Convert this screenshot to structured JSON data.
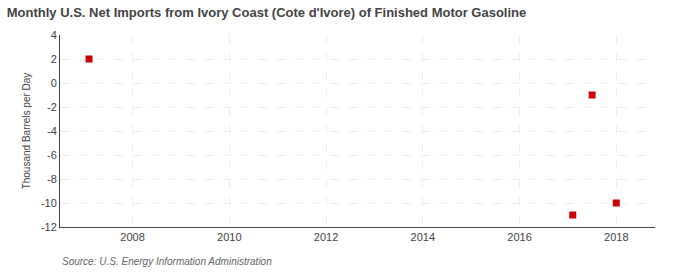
{
  "chart_data": {
    "type": "scatter",
    "title": "Monthly U.S. Net Imports from Ivory Coast (Cote d'Ivore) of Finished Motor Gasoline",
    "ylabel": "Thousand Barrels per Day",
    "annotations": [
      "Source: U.S. Energy Information Administration"
    ],
    "x": [
      2007.1,
      2017.5,
      2017.1,
      2018.0
    ],
    "values": [
      2,
      -1,
      -11,
      -10
    ],
    "color": "#cc0000",
    "marker": "square",
    "xlim": [
      2006.5,
      2018.8
    ],
    "xticks": [
      2008,
      2010,
      2012,
      2014,
      2016,
      2018
    ],
    "ylim": [
      -12,
      4
    ],
    "yticks": [
      -12,
      -10,
      -8,
      -6,
      -4,
      -2,
      0,
      2,
      4
    ],
    "grid": true
  }
}
